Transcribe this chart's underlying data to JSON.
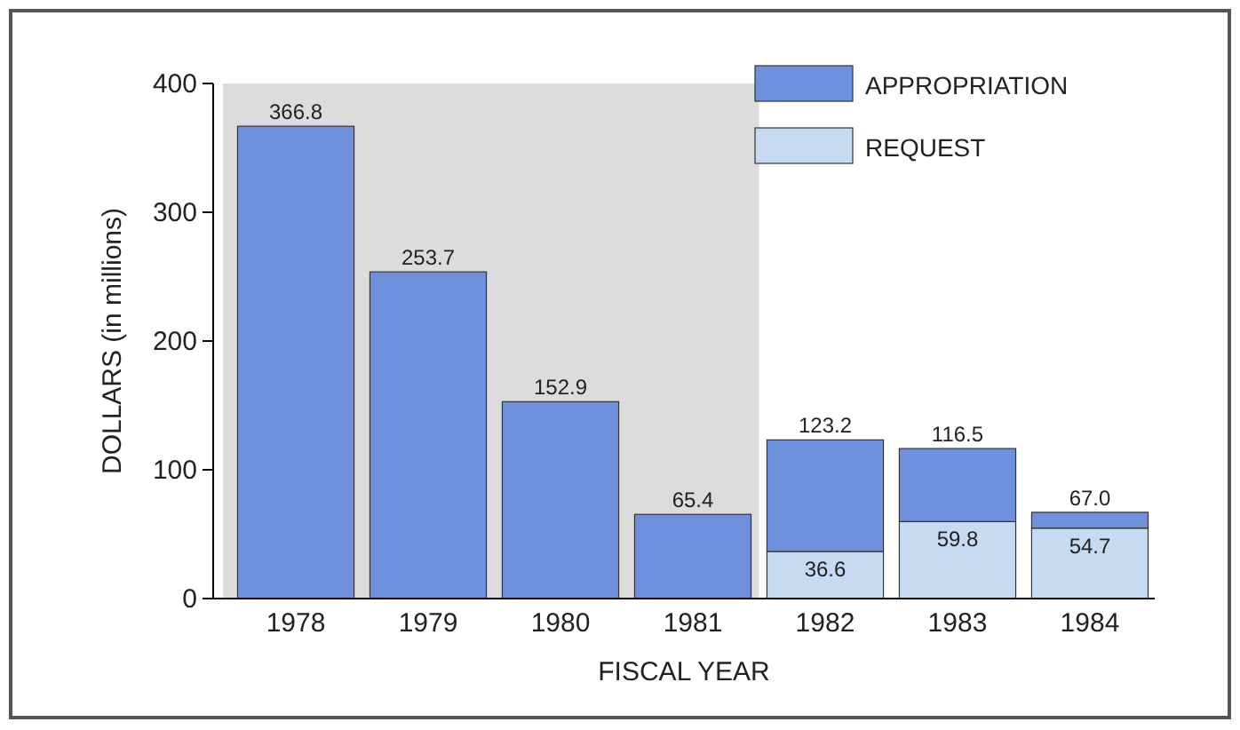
{
  "chart_data": {
    "type": "bar",
    "stacked": true,
    "xlabel": "FISCAL YEAR",
    "ylabel": "DOLLARS (in millions)",
    "categories": [
      "1978",
      "1979",
      "1980",
      "1981",
      "1982",
      "1983",
      "1984"
    ],
    "series": [
      {
        "name": "REQUEST",
        "color": "#c6daf2",
        "values": [
          null,
          null,
          null,
          null,
          36.6,
          59.8,
          54.7
        ],
        "value_labels": [
          null,
          null,
          null,
          null,
          "36.6",
          "59.8",
          "54.7"
        ]
      },
      {
        "name": "APPROPRIATION",
        "color": "#6f90dc",
        "values": [
          366.8,
          253.7,
          152.9,
          65.4,
          86.6,
          56.7,
          12.3
        ]
      }
    ],
    "totals": [
      "366.8",
      "253.7",
      "152.9",
      "65.4",
      "123.2",
      "116.5",
      "67.0"
    ],
    "ylim": [
      0,
      400
    ],
    "yticks": [
      0,
      100,
      200,
      300,
      400
    ],
    "grid": false,
    "legend": "top right",
    "bands": [
      {
        "axis": "x",
        "from": "1978",
        "to": "1981",
        "color": "#dcdcdc"
      }
    ]
  }
}
